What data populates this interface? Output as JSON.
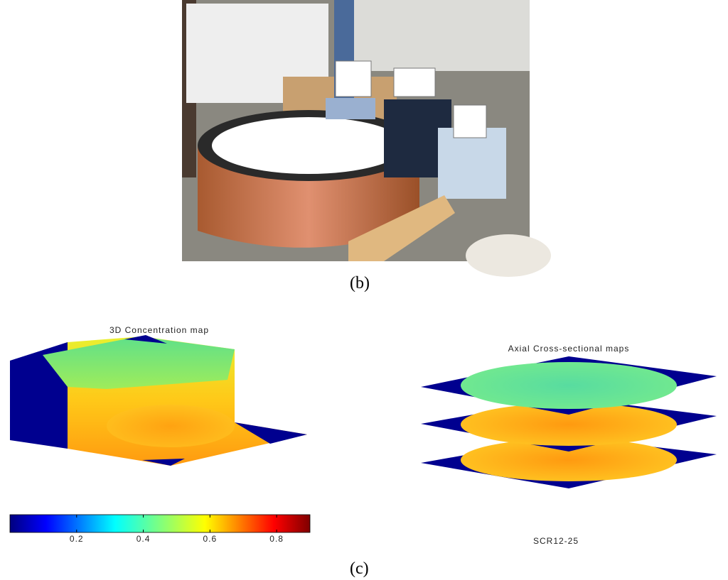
{
  "figure": {
    "photo_caption": "(b)",
    "left_title": "3D Concentration map",
    "right_title": "Axial Cross-sectional maps",
    "colorbar": {
      "lim": [
        0,
        0.9
      ],
      "ticks": [
        0.2,
        0.4,
        0.6,
        0.8
      ]
    },
    "sample_label": "SCR12-25",
    "maps_caption": "(c)"
  }
}
